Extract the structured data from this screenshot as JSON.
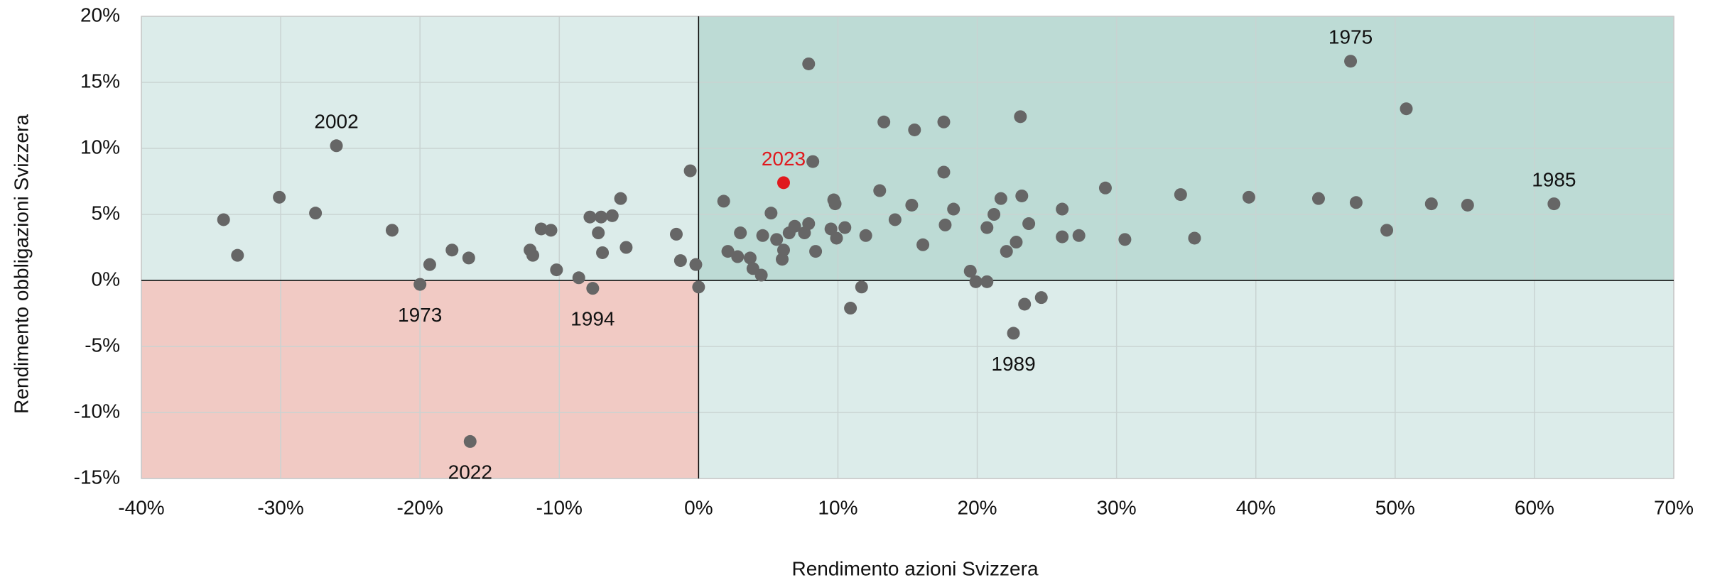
{
  "chart_data": {
    "type": "scatter",
    "x_label": "Rendimento azioni Svizzera",
    "y_label": "Rendimento obbligazioni Svizzera",
    "x": [
      -34.1,
      -33.1,
      -30.1,
      -27.5,
      -26.0,
      -22.0,
      -20.0,
      -19.3,
      -17.7,
      -16.5,
      -16.4,
      -12.1,
      -11.9,
      -11.3,
      -10.6,
      -10.2,
      -8.6,
      -7.8,
      -7.6,
      -7.2,
      -7.0,
      -6.9,
      -6.2,
      -5.6,
      -5.2,
      -1.6,
      -1.3,
      -0.6,
      -0.2,
      0.0,
      1.8,
      2.1,
      2.8,
      3.0,
      3.7,
      3.9,
      4.5,
      4.6,
      5.2,
      5.6,
      6.0,
      6.1,
      6.5,
      6.9,
      7.6,
      7.9,
      7.9,
      8.2,
      8.4,
      9.5,
      9.7,
      9.8,
      9.9,
      10.5,
      10.9,
      11.7,
      12.0,
      13.0,
      13.3,
      14.1,
      15.3,
      15.5,
      16.1,
      17.6,
      17.6,
      17.7,
      18.3,
      19.5,
      19.9,
      20.7,
      20.7,
      21.2,
      21.7,
      22.1,
      22.6,
      22.8,
      23.1,
      23.2,
      23.4,
      23.7,
      24.6,
      26.1,
      26.1,
      27.3,
      29.2,
      30.6,
      34.6,
      35.6,
      39.5,
      44.5,
      46.8,
      47.2,
      49.4,
      50.8,
      52.6,
      55.2,
      61.4
    ],
    "y": [
      4.6,
      1.9,
      6.3,
      5.1,
      10.2,
      3.8,
      -0.3,
      1.2,
      2.3,
      1.7,
      -12.2,
      2.3,
      1.9,
      3.9,
      3.8,
      0.8,
      0.2,
      4.8,
      -0.6,
      3.6,
      4.8,
      2.1,
      4.9,
      6.2,
      2.5,
      3.5,
      1.5,
      8.3,
      1.2,
      -0.5,
      6.0,
      2.2,
      1.8,
      3.6,
      1.7,
      0.9,
      0.4,
      3.4,
      5.1,
      3.1,
      1.6,
      2.3,
      3.6,
      4.1,
      3.6,
      4.3,
      16.4,
      9.0,
      2.2,
      3.9,
      6.1,
      5.8,
      3.2,
      4.0,
      -2.1,
      -0.5,
      3.4,
      6.8,
      12.0,
      4.6,
      5.7,
      11.4,
      2.7,
      12.0,
      8.2,
      4.2,
      5.4,
      0.7,
      -0.1,
      -0.1,
      4.0,
      5.0,
      6.2,
      2.2,
      -4.0,
      2.9,
      12.4,
      6.4,
      -1.8,
      4.3,
      -1.3,
      5.4,
      3.3,
      3.4,
      7.0,
      3.1,
      6.5,
      3.2,
      6.3,
      6.2,
      16.6,
      5.9,
      3.8,
      13.0,
      5.8,
      5.7,
      5.8
    ],
    "color": "#666666",
    "highlight": {
      "x": 6.1,
      "y": 7.4,
      "color": "#e0191e"
    },
    "annotations": [
      {
        "text": "2002",
        "x": -26.0,
        "y": 10.2
      },
      {
        "text": "1973",
        "x": -20.0,
        "y": -0.3
      },
      {
        "text": "2022",
        "x": -16.4,
        "y": -12.2
      },
      {
        "text": "1994",
        "x": -7.6,
        "y": -0.6
      },
      {
        "text": "2023",
        "x": 6.1,
        "y": 7.4,
        "color": "#e0191e"
      },
      {
        "text": "1989",
        "x": 22.6,
        "y": -4.0
      },
      {
        "text": "1975",
        "x": 46.8,
        "y": 16.6
      },
      {
        "text": "1985",
        "x": 61.4,
        "y": 5.8
      }
    ],
    "xlim": [
      -40,
      70
    ],
    "xticks": [
      {
        "value": -40,
        "label": "-40%"
      },
      {
        "value": -30,
        "label": "-30%"
      },
      {
        "value": -20,
        "label": "-20%"
      },
      {
        "value": -10,
        "label": "-10%"
      },
      {
        "value": 0,
        "label": "0%"
      },
      {
        "value": 10,
        "label": "10%"
      },
      {
        "value": 20,
        "label": "20%"
      },
      {
        "value": 30,
        "label": "30%"
      },
      {
        "value": 40,
        "label": "40%"
      },
      {
        "value": 50,
        "label": "50%"
      },
      {
        "value": 60,
        "label": "60%"
      },
      {
        "value": 70,
        "label": "70%"
      }
    ],
    "ylim": [
      -15,
      20
    ],
    "yticks": [
      {
        "value": -15,
        "label": "-15%"
      },
      {
        "value": -10,
        "label": "-10%"
      },
      {
        "value": -5,
        "label": "-5%"
      },
      {
        "value": 0,
        "label": "0%"
      },
      {
        "value": 5,
        "label": "5%"
      },
      {
        "value": 10,
        "label": "10%"
      },
      {
        "value": 15,
        "label": "15%"
      },
      {
        "value": 20,
        "label": "20%"
      }
    ],
    "grid": true,
    "quadrant_colors": {
      "top_right": "#bddbd5",
      "bottom_left": "#f1cac4",
      "other": "#dcecea"
    }
  }
}
